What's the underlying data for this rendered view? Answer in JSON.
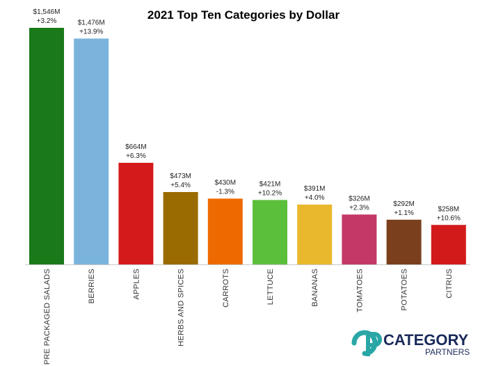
{
  "chart_data": {
    "type": "bar",
    "title": "2021 Top Ten Categories by Dollar",
    "categories": [
      "PRE PACKAGED SALADS",
      "BERRIES",
      "APPLES",
      "HERBS AND SPICES",
      "CARROTS",
      "LETTUCE",
      "BANANAS",
      "TOMATOES",
      "POTATOES",
      "CITRUS"
    ],
    "values": [
      1546,
      1476,
      664,
      473,
      430,
      421,
      391,
      326,
      292,
      258
    ],
    "value_labels": [
      "$1,546M",
      "$1,476M",
      "$664M",
      "$473M",
      "$430M",
      "$421M",
      "$391M",
      "$326M",
      "$292M",
      "$258M"
    ],
    "change_labels": [
      "+3.2%",
      "+13.9%",
      "+6.3%",
      "+5.4%",
      "-1.3%",
      "+10.2%",
      "+4.0%",
      "+2.3%",
      "+1.1%",
      "+10.6%"
    ],
    "colors": [
      "#1a7a1a",
      "#7ab4dc",
      "#d41a1a",
      "#9a6b00",
      "#ee6a00",
      "#5cbf3c",
      "#eab82c",
      "#c43868",
      "#7a3f1c",
      "#d21a1a"
    ],
    "grid": false,
    "legend": "none"
  },
  "logo": {
    "mark": "CP",
    "name": "CATEGORY",
    "sub": "PARTNERS",
    "mark_color": "#2aa6a6",
    "text_color": "#1a2a5a"
  }
}
